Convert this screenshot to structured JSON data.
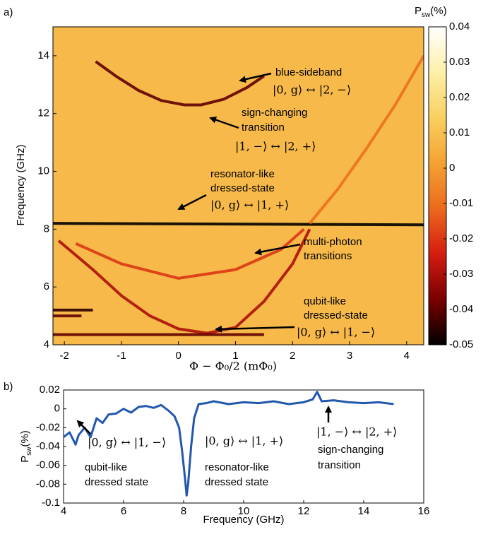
{
  "chart_data": [
    {
      "type": "heatmap",
      "panel_label": "a)",
      "xlabel": "Φ − Φ₀/2 (mΦ₀)",
      "ylabel": "Frequency (GHz)",
      "colorbar_label": [
        "P",
        "sw",
        "(%)"
      ],
      "xlim": [
        -2.2,
        4.3
      ],
      "xticks": [
        -2,
        -1,
        0,
        1,
        2,
        3,
        4
      ],
      "ylim": [
        4,
        15
      ],
      "yticks": [
        4,
        6,
        8,
        10,
        12,
        14
      ],
      "clim": [
        -0.05,
        0.04
      ],
      "cticks": [
        -0.05,
        -0.04,
        -0.03,
        -0.02,
        -0.01,
        0,
        0.01,
        0.02,
        0.03,
        0.04
      ],
      "colormap": [
        "#000000",
        "#7a0000",
        "#d41c10",
        "#ec6a1c",
        "#f4a232",
        "#f9d060",
        "#fdf0a8",
        "#ffffff"
      ],
      "background": 0.008,
      "curves": [
        {
          "x": [
            -1.45,
            -1.1,
            -0.7,
            -0.3,
            0.1,
            0.4,
            0.8,
            1.2,
            1.5
          ],
          "y": [
            13.8,
            13.3,
            12.8,
            12.45,
            12.3,
            12.3,
            12.5,
            12.9,
            13.3
          ],
          "value": -0.04
        },
        {
          "x": [
            -2.2,
            4.3
          ],
          "y": [
            8.2,
            8.15
          ],
          "value": -0.05
        },
        {
          "x": [
            -2.1,
            -1.5,
            -1,
            -0.5,
            0,
            0.5,
            1,
            1.5,
            2,
            2.3
          ],
          "y": [
            7.6,
            6.6,
            5.7,
            5.0,
            4.55,
            4.4,
            4.6,
            5.5,
            6.8,
            8.0
          ],
          "value": -0.03
        },
        {
          "x": [
            2.3,
            2.8,
            3.3,
            3.8,
            4.3
          ],
          "y": [
            8.2,
            9.4,
            10.8,
            12.3,
            14.0
          ],
          "value": -0.01
        },
        {
          "x": [
            -1.8,
            -1,
            0,
            1,
            1.8,
            2.2
          ],
          "y": [
            7.5,
            6.8,
            6.3,
            6.6,
            7.3,
            8.0
          ],
          "value": -0.02
        },
        {
          "x": [
            -2.2,
            -1.5
          ],
          "y": [
            5.2,
            5.2
          ],
          "value": -0.045
        },
        {
          "x": [
            -2.2,
            -1.7
          ],
          "y": [
            5.0,
            5.0
          ],
          "value": -0.04
        },
        {
          "x": [
            -2.2,
            1.5
          ],
          "y": [
            4.35,
            4.35
          ],
          "value": -0.04
        }
      ],
      "annotations": [
        {
          "lines": [
            "blue-sideband",
            "|0, g⟩ ↔ |2, −⟩"
          ]
        },
        {
          "lines": [
            "sign-changing",
            "transition",
            "|1, −⟩ ↔ |2, +⟩"
          ]
        },
        {
          "lines": [
            "resonator-like",
            "dressed-state",
            "|0, g⟩ ↔ |1, +⟩"
          ]
        },
        {
          "lines": [
            "multi-photon",
            "transitions"
          ]
        },
        {
          "lines": [
            "qubit-like",
            "dressed-state",
            "|0, g⟩ ↔ |1, −⟩"
          ]
        }
      ]
    },
    {
      "type": "line",
      "panel_label": "b)",
      "xlabel": "Frequency (GHz)",
      "ylabel": [
        "P",
        "sw",
        "(%)"
      ],
      "xlim": [
        4,
        16
      ],
      "xticks": [
        4,
        6,
        8,
        10,
        12,
        14,
        16
      ],
      "ylim": [
        -0.1,
        0.02
      ],
      "yticks": [
        -0.1,
        -0.08,
        -0.06,
        -0.04,
        -0.02,
        0,
        0.02
      ],
      "x": [
        4,
        4.2,
        4.4,
        4.5,
        4.7,
        4.9,
        5.1,
        5.3,
        5.5,
        5.75,
        6,
        6.25,
        6.5,
        6.75,
        7,
        7.25,
        7.5,
        7.7,
        7.85,
        7.95,
        8.05,
        8.1,
        8.15,
        8.25,
        8.35,
        8.5,
        8.75,
        9,
        9.5,
        10,
        10.5,
        11,
        11.5,
        12,
        12.3,
        12.45,
        12.6,
        13,
        13.5,
        14,
        14.5,
        15
      ],
      "series": [
        {
          "color": "#2158ad",
          "values": [
            -0.03,
            -0.025,
            -0.038,
            -0.028,
            -0.02,
            -0.03,
            -0.01,
            -0.015,
            -0.006,
            -0.005,
            0.0,
            -0.004,
            0.002,
            0.003,
            0.001,
            0.004,
            -0.002,
            -0.008,
            -0.02,
            -0.045,
            -0.075,
            -0.092,
            -0.08,
            -0.04,
            -0.01,
            0.005,
            0.006,
            0.008,
            0.005,
            0.007,
            0.006,
            0.008,
            0.005,
            0.007,
            0.01,
            0.018,
            0.008,
            0.009,
            0.007,
            0.006,
            0.007,
            0.005
          ]
        }
      ],
      "annotations": [
        {
          "lines": [
            "|0, g⟩ ↔ |1, −⟩",
            "qubit-like",
            "dressed state"
          ]
        },
        {
          "lines": [
            "|0, g⟩ ↔ |1, +⟩",
            "resonator-like",
            "dressed state"
          ]
        },
        {
          "lines": [
            "|1, −⟩ ↔ |2, +⟩",
            "sign-changing",
            "transition"
          ]
        }
      ]
    }
  ]
}
